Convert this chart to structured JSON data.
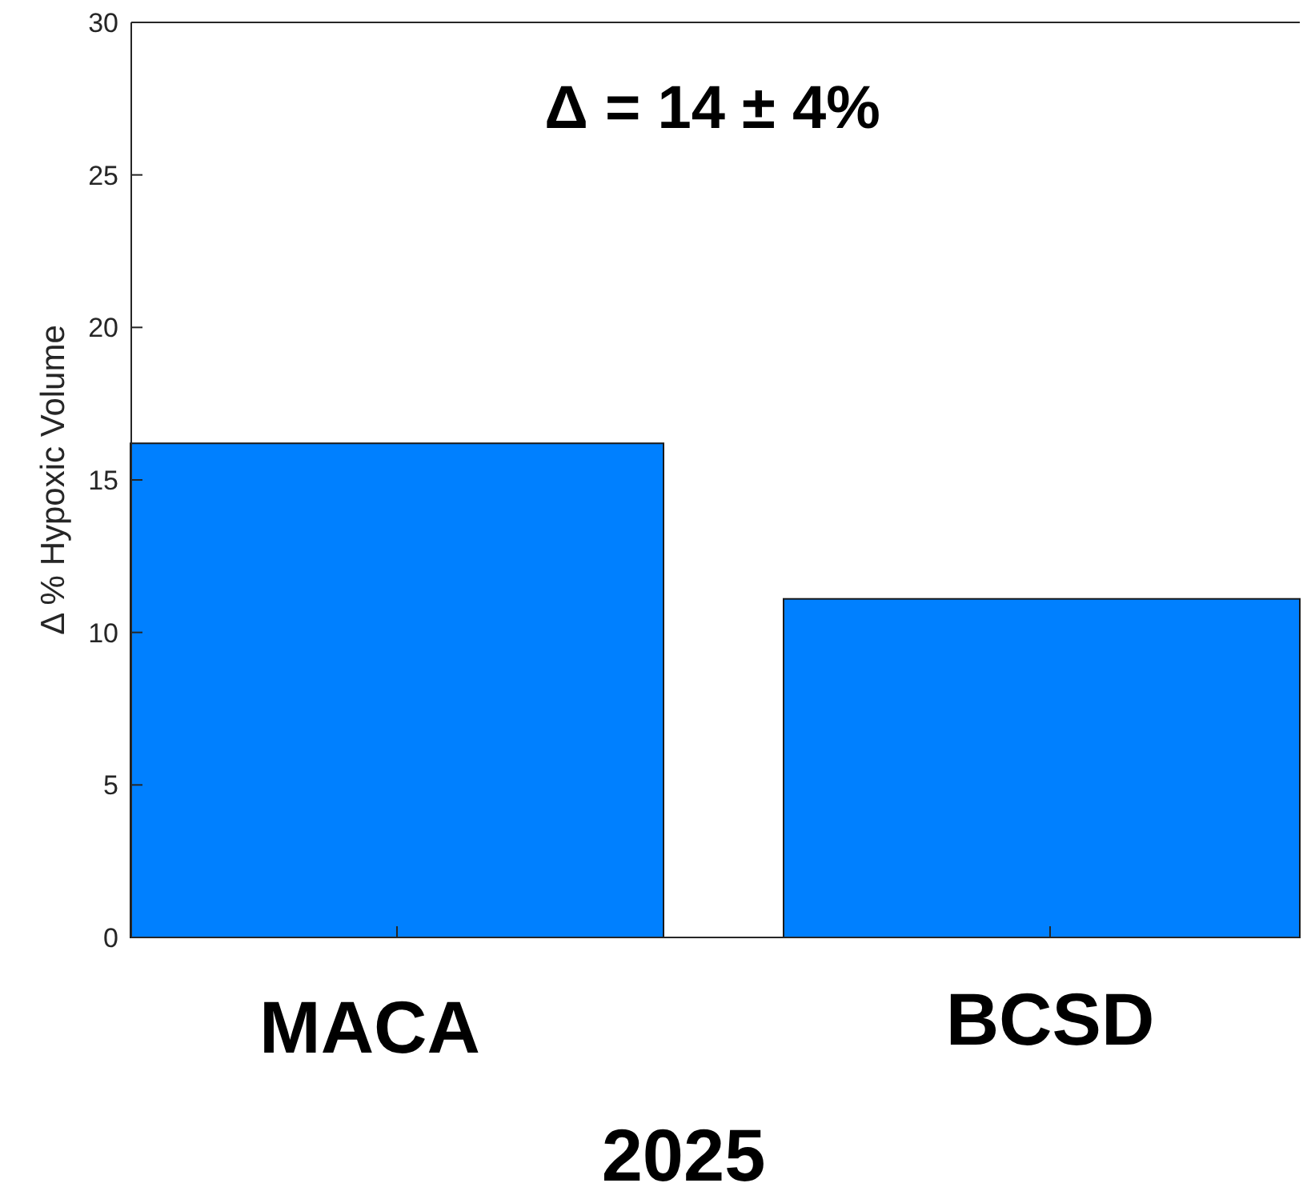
{
  "chart_data": {
    "type": "bar",
    "ylabel": "Δ % Hypoxic Volume",
    "xlabel": "2025",
    "categories": [
      "MACA",
      "BCSD"
    ],
    "values": [
      16.2,
      11.1
    ],
    "color": "#0080ff",
    "ylim": [
      0,
      30
    ],
    "yticks": [
      0,
      5,
      10,
      15,
      20,
      25,
      30
    ],
    "grid": false,
    "annotations": [
      "Δ = 14 ± 4%"
    ]
  }
}
